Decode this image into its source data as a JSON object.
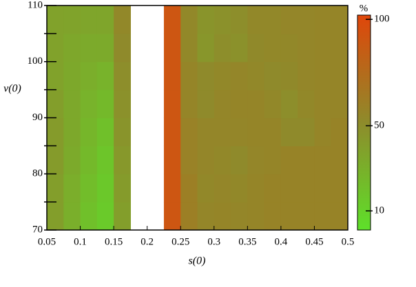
{
  "chart_data": {
    "type": "contour",
    "x_label": "s(0)",
    "y_label": "v(0)",
    "colorbar_label": "%",
    "x_edges": [
      0.05,
      0.075,
      0.1,
      0.125,
      0.15,
      0.175,
      0.2,
      0.225,
      0.25,
      0.275,
      0.3,
      0.325,
      0.35,
      0.375,
      0.4,
      0.425,
      0.45,
      0.475,
      0.5
    ],
    "y_edges": [
      70,
      75,
      80,
      85,
      90,
      95,
      100,
      105,
      110
    ],
    "z": [
      [
        40,
        30,
        20,
        14,
        40,
        null,
        null,
        90,
        60,
        55,
        56,
        55,
        56,
        57,
        57,
        57,
        57,
        57
      ],
      [
        40,
        31,
        22,
        15,
        42,
        null,
        null,
        90,
        60,
        54,
        55,
        54,
        56,
        57,
        57,
        57,
        57,
        57
      ],
      [
        42,
        33,
        24,
        17,
        44,
        null,
        null,
        90,
        58,
        55,
        54,
        52,
        55,
        56,
        57,
        57,
        57,
        57
      ],
      [
        42,
        34,
        26,
        20,
        46,
        null,
        null,
        90,
        58,
        55,
        55,
        55,
        56,
        56,
        52,
        52,
        56,
        57
      ],
      [
        40,
        34,
        28,
        24,
        48,
        null,
        null,
        90,
        56,
        52,
        55,
        56,
        56,
        54,
        50,
        54,
        56,
        56
      ],
      [
        38,
        34,
        31,
        28,
        50,
        null,
        null,
        90,
        56,
        52,
        54,
        55,
        54,
        52,
        53,
        55,
        56,
        56
      ],
      [
        38,
        35,
        33,
        33,
        52,
        null,
        null,
        90,
        54,
        45,
        50,
        48,
        53,
        54,
        54,
        55,
        56,
        56
      ],
      [
        38,
        37,
        36,
        36,
        54,
        null,
        null,
        90,
        54,
        46,
        48,
        50,
        54,
        54,
        55,
        55,
        56,
        56
      ]
    ],
    "xlim": [
      0.05,
      0.5
    ],
    "ylim": [
      70,
      110
    ],
    "xticks": [
      0.05,
      0.1,
      0.15,
      0.2,
      0.25,
      0.3,
      0.35,
      0.4,
      0.45,
      0.5
    ],
    "yticks": [
      70,
      80,
      90,
      100,
      110
    ],
    "yminor": [
      75,
      85,
      95,
      105
    ],
    "clim": [
      1,
      102
    ],
    "cticks": [
      10,
      50,
      100
    ],
    "colormap": [
      "#5ee02a",
      "#8e8b2b",
      "#e0460a"
    ]
  }
}
